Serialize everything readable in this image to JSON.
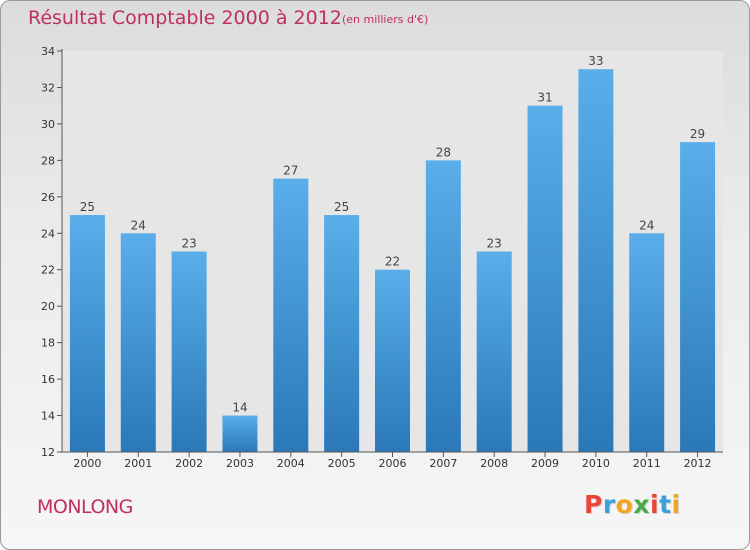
{
  "header": {
    "title": "Résultat Comptable 2000 à 2012",
    "subtitle": "(en milliers d'€)"
  },
  "footer": {
    "town": "MONLONG",
    "logo_letters": [
      "P",
      "r",
      "o",
      "x",
      "i",
      "t",
      "i"
    ]
  },
  "chart_data": {
    "type": "bar",
    "title": "Résultat Comptable 2000 à 2012",
    "subtitle": "(en milliers d'€)",
    "xlabel": "",
    "ylabel": "",
    "categories": [
      "2000",
      "2001",
      "2002",
      "2003",
      "2004",
      "2005",
      "2006",
      "2007",
      "2008",
      "2009",
      "2010",
      "2011",
      "2012"
    ],
    "values": [
      25,
      24,
      23,
      14,
      27,
      25,
      22,
      28,
      23,
      31,
      33,
      24,
      29
    ],
    "ylim": [
      12,
      34
    ],
    "yticks": [
      12,
      14,
      16,
      18,
      20,
      22,
      24,
      26,
      28,
      30,
      32,
      34
    ],
    "grid": false,
    "bar_color": "#3a8fd6",
    "label_color": "#444444"
  }
}
